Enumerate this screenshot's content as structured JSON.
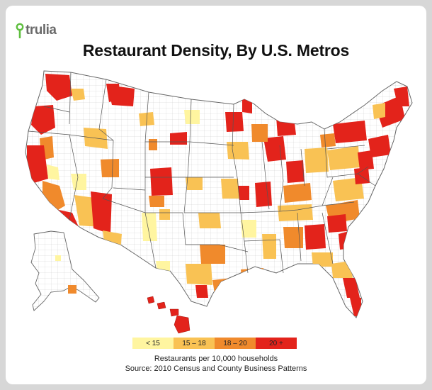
{
  "brand": {
    "logo_text": "trulia",
    "logo_icon": "map-pin-icon",
    "accent": "#5fbf3f"
  },
  "title": "Restaurant Density, By U.S. Metros",
  "legend": [
    {
      "label": "< 15",
      "color": "#fff5a0"
    },
    {
      "label": "15 – 18",
      "color": "#f9c254"
    },
    {
      "label": "18 – 20",
      "color": "#f08a2c"
    },
    {
      "label": "20 +",
      "color": "#e3231b"
    }
  ],
  "caption": "Restaurants per 10,000 households",
  "source": "Source: 2010 Census and County Business Patterns"
}
